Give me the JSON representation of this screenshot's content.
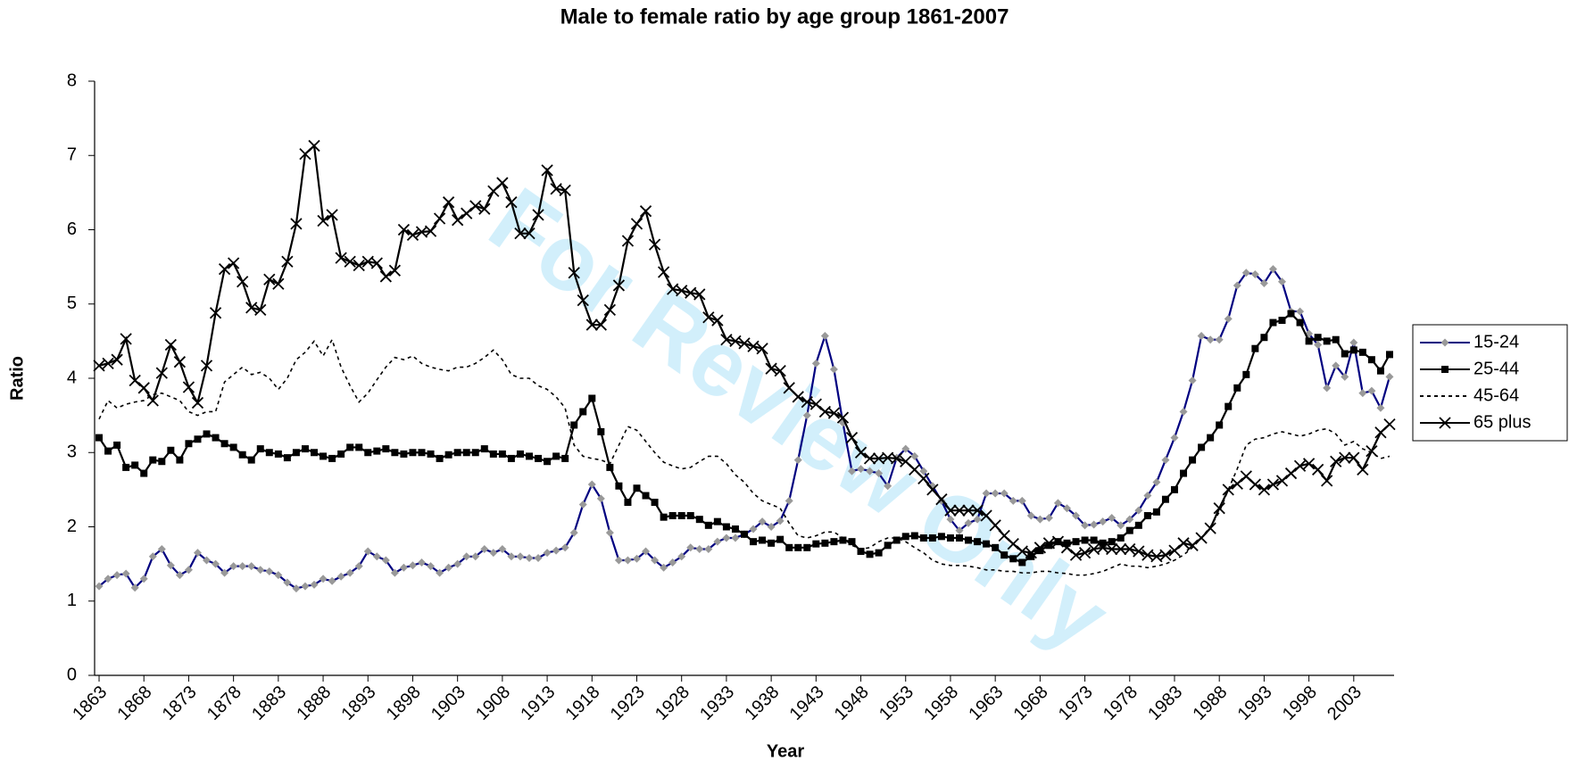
{
  "chart_data": {
    "type": "line",
    "title": "Male to female ratio by age group 1861-2007",
    "xlabel": "Year",
    "ylabel": "Ratio",
    "watermark": "For Review Only",
    "x": [
      1863,
      1864,
      1865,
      1866,
      1867,
      1868,
      1869,
      1870,
      1871,
      1872,
      1873,
      1874,
      1875,
      1876,
      1877,
      1878,
      1879,
      1880,
      1881,
      1882,
      1883,
      1884,
      1885,
      1886,
      1887,
      1888,
      1889,
      1890,
      1891,
      1892,
      1893,
      1894,
      1895,
      1896,
      1897,
      1898,
      1899,
      1900,
      1901,
      1902,
      1903,
      1904,
      1905,
      1906,
      1907,
      1908,
      1909,
      1910,
      1911,
      1912,
      1913,
      1914,
      1915,
      1916,
      1917,
      1918,
      1919,
      1920,
      1921,
      1922,
      1923,
      1924,
      1925,
      1926,
      1927,
      1928,
      1929,
      1930,
      1931,
      1932,
      1933,
      1934,
      1935,
      1936,
      1937,
      1938,
      1939,
      1940,
      1941,
      1942,
      1943,
      1944,
      1945,
      1946,
      1947,
      1948,
      1949,
      1950,
      1951,
      1952,
      1953,
      1954,
      1955,
      1956,
      1957,
      1958,
      1959,
      1960,
      1961,
      1962,
      1963,
      1964,
      1965,
      1966,
      1967,
      1968,
      1969,
      1970,
      1971,
      1972,
      1973,
      1974,
      1975,
      1976,
      1977,
      1978,
      1979,
      1980,
      1981,
      1982,
      1983,
      1984,
      1985,
      1986,
      1987,
      1988,
      1989,
      1990,
      1991,
      1992,
      1993,
      1994,
      1995,
      1996,
      1997,
      1998,
      1999,
      2000,
      2001,
      2002,
      2003,
      2004,
      2005,
      2006,
      2007
    ],
    "xlim": [
      1862.5,
      2007.5
    ],
    "xticks": [
      1863,
      1868,
      1873,
      1878,
      1883,
      1888,
      1893,
      1898,
      1903,
      1908,
      1913,
      1918,
      1923,
      1928,
      1933,
      1938,
      1943,
      1948,
      1953,
      1958,
      1963,
      1968,
      1973,
      1978,
      1983,
      1988,
      1993,
      1998,
      2003
    ],
    "ylim": [
      0,
      8
    ],
    "yticks": [
      0,
      1,
      2,
      3,
      4,
      5,
      6,
      7,
      8
    ],
    "legend": "right",
    "series": [
      {
        "name": "15-24",
        "color": "#000080",
        "marker": "diamond",
        "marker_color": "#999999",
        "dash": "solid",
        "values": [
          1.2,
          1.3,
          1.35,
          1.37,
          1.18,
          1.3,
          1.6,
          1.7,
          1.48,
          1.35,
          1.42,
          1.65,
          1.55,
          1.5,
          1.38,
          1.47,
          1.47,
          1.47,
          1.42,
          1.4,
          1.35,
          1.25,
          1.17,
          1.2,
          1.22,
          1.3,
          1.27,
          1.33,
          1.38,
          1.47,
          1.67,
          1.6,
          1.55,
          1.38,
          1.45,
          1.48,
          1.52,
          1.47,
          1.38,
          1.45,
          1.5,
          1.6,
          1.6,
          1.7,
          1.65,
          1.7,
          1.6,
          1.6,
          1.58,
          1.58,
          1.65,
          1.68,
          1.72,
          1.92,
          2.3,
          2.57,
          2.38,
          1.92,
          1.55,
          1.55,
          1.57,
          1.67,
          1.55,
          1.45,
          1.52,
          1.6,
          1.72,
          1.7,
          1.7,
          1.8,
          1.85,
          1.85,
          1.9,
          1.97,
          2.07,
          2.0,
          2.08,
          2.35,
          2.9,
          3.5,
          4.2,
          4.57,
          4.12,
          3.4,
          2.75,
          2.78,
          2.75,
          2.72,
          2.55,
          2.93,
          3.05,
          2.95,
          2.75,
          2.55,
          2.35,
          2.1,
          1.95,
          2.05,
          2.1,
          2.45,
          2.45,
          2.45,
          2.35,
          2.35,
          2.15,
          2.1,
          2.12,
          2.32,
          2.25,
          2.15,
          2.02,
          2.03,
          2.07,
          2.12,
          2.02,
          2.1,
          2.22,
          2.42,
          2.6,
          2.9,
          3.2,
          3.55,
          3.97,
          4.57,
          4.52,
          4.52,
          4.8,
          5.25,
          5.42,
          5.4,
          5.28,
          5.47,
          5.3,
          4.9,
          4.9,
          4.6,
          4.45,
          3.87,
          4.17,
          4.02,
          4.48,
          3.8,
          3.83,
          3.6,
          4.02
        ]
      },
      {
        "name": "25-44",
        "color": "#000000",
        "marker": "square",
        "marker_color": "#000000",
        "dash": "solid",
        "values": [
          3.2,
          3.02,
          3.1,
          2.8,
          2.83,
          2.72,
          2.9,
          2.88,
          3.03,
          2.9,
          3.12,
          3.18,
          3.25,
          3.2,
          3.12,
          3.07,
          2.97,
          2.9,
          3.05,
          3.0,
          2.98,
          2.93,
          3.0,
          3.05,
          3.0,
          2.95,
          2.92,
          2.98,
          3.07,
          3.07,
          3.0,
          3.02,
          3.05,
          3.0,
          2.98,
          3.0,
          3.0,
          2.98,
          2.92,
          2.97,
          3.0,
          3.0,
          3.0,
          3.05,
          2.98,
          2.98,
          2.92,
          2.98,
          2.95,
          2.92,
          2.88,
          2.95,
          2.92,
          3.37,
          3.55,
          3.73,
          3.28,
          2.8,
          2.55,
          2.33,
          2.52,
          2.42,
          2.33,
          2.13,
          2.15,
          2.15,
          2.15,
          2.1,
          2.02,
          2.07,
          2.0,
          1.97,
          1.9,
          1.8,
          1.82,
          1.78,
          1.83,
          1.72,
          1.72,
          1.72,
          1.77,
          1.78,
          1.8,
          1.82,
          1.8,
          1.67,
          1.63,
          1.65,
          1.75,
          1.82,
          1.87,
          1.88,
          1.85,
          1.85,
          1.87,
          1.85,
          1.85,
          1.82,
          1.8,
          1.77,
          1.72,
          1.62,
          1.57,
          1.52,
          1.6,
          1.68,
          1.75,
          1.8,
          1.78,
          1.8,
          1.82,
          1.82,
          1.78,
          1.8,
          1.85,
          1.95,
          2.02,
          2.15,
          2.2,
          2.37,
          2.5,
          2.72,
          2.9,
          3.07,
          3.2,
          3.37,
          3.62,
          3.87,
          4.05,
          4.4,
          4.55,
          4.75,
          4.78,
          4.87,
          4.75,
          4.5,
          4.55,
          4.5,
          4.52,
          4.33,
          4.38,
          4.35,
          4.25,
          4.1,
          4.32
        ]
      },
      {
        "name": "45-64",
        "color": "#000000",
        "marker": "none",
        "marker_color": "#000000",
        "dash": "dotted",
        "values": [
          3.45,
          3.7,
          3.6,
          3.65,
          3.68,
          3.7,
          3.78,
          3.8,
          3.75,
          3.7,
          3.55,
          3.5,
          3.55,
          3.55,
          3.95,
          4.05,
          4.15,
          4.05,
          4.08,
          4.0,
          3.85,
          4.0,
          4.25,
          4.35,
          4.5,
          4.3,
          4.52,
          4.15,
          3.9,
          3.68,
          3.8,
          3.98,
          4.15,
          4.28,
          4.25,
          4.3,
          4.2,
          4.15,
          4.12,
          4.1,
          4.15,
          4.15,
          4.2,
          4.28,
          4.38,
          4.25,
          4.05,
          4.0,
          4.0,
          3.9,
          3.85,
          3.75,
          3.6,
          3.1,
          2.95,
          2.92,
          2.9,
          2.85,
          3.1,
          3.35,
          3.3,
          3.15,
          3.0,
          2.87,
          2.82,
          2.78,
          2.8,
          2.88,
          2.95,
          2.95,
          2.85,
          2.7,
          2.6,
          2.45,
          2.35,
          2.3,
          2.25,
          2.05,
          1.88,
          1.85,
          1.88,
          1.93,
          1.93,
          1.85,
          1.75,
          1.7,
          1.72,
          1.8,
          1.85,
          1.85,
          1.8,
          1.72,
          1.65,
          1.55,
          1.5,
          1.48,
          1.48,
          1.47,
          1.45,
          1.42,
          1.42,
          1.4,
          1.4,
          1.38,
          1.38,
          1.4,
          1.4,
          1.38,
          1.37,
          1.35,
          1.35,
          1.37,
          1.4,
          1.45,
          1.5,
          1.47,
          1.47,
          1.45,
          1.47,
          1.5,
          1.55,
          1.62,
          1.72,
          1.85,
          2.0,
          2.2,
          2.5,
          2.78,
          3.1,
          3.18,
          3.2,
          3.25,
          3.28,
          3.25,
          3.22,
          3.25,
          3.3,
          3.32,
          3.25,
          3.1,
          3.15,
          3.05,
          3.0,
          2.92,
          2.95
        ]
      },
      {
        "name": "65 plus",
        "color": "#000000",
        "marker": "x",
        "marker_color": "#000000",
        "dash": "solid",
        "values": [
          4.17,
          4.2,
          4.25,
          4.53,
          3.97,
          3.87,
          3.7,
          4.07,
          4.45,
          4.22,
          3.88,
          3.67,
          4.17,
          4.88,
          5.47,
          5.55,
          5.3,
          4.95,
          4.92,
          5.33,
          5.27,
          5.57,
          6.08,
          7.02,
          7.13,
          6.12,
          6.2,
          5.62,
          5.57,
          5.52,
          5.57,
          5.55,
          5.37,
          5.45,
          6.0,
          5.93,
          5.97,
          5.98,
          6.15,
          6.37,
          6.13,
          6.22,
          6.32,
          6.28,
          6.52,
          6.63,
          6.37,
          5.95,
          5.95,
          6.2,
          6.8,
          6.55,
          6.53,
          5.42,
          5.05,
          4.72,
          4.72,
          4.92,
          5.25,
          5.85,
          6.08,
          6.25,
          5.8,
          5.43,
          5.2,
          5.18,
          5.15,
          5.13,
          4.82,
          4.78,
          4.52,
          4.5,
          4.47,
          4.43,
          4.4,
          4.13,
          4.1,
          3.87,
          3.75,
          3.68,
          3.65,
          3.55,
          3.53,
          3.47,
          3.2,
          3.0,
          2.92,
          2.92,
          2.93,
          2.92,
          2.88,
          2.77,
          2.65,
          2.5,
          2.37,
          2.22,
          2.22,
          2.22,
          2.22,
          2.15,
          2.02,
          1.88,
          1.77,
          1.67,
          1.65,
          1.72,
          1.78,
          1.8,
          1.72,
          1.62,
          1.65,
          1.7,
          1.72,
          1.7,
          1.7,
          1.7,
          1.67,
          1.62,
          1.6,
          1.62,
          1.68,
          1.78,
          1.75,
          1.85,
          1.98,
          2.25,
          2.5,
          2.58,
          2.68,
          2.57,
          2.5,
          2.57,
          2.62,
          2.72,
          2.82,
          2.85,
          2.77,
          2.62,
          2.88,
          2.93,
          2.93,
          2.77,
          3.02,
          3.27,
          3.38
        ]
      }
    ]
  }
}
